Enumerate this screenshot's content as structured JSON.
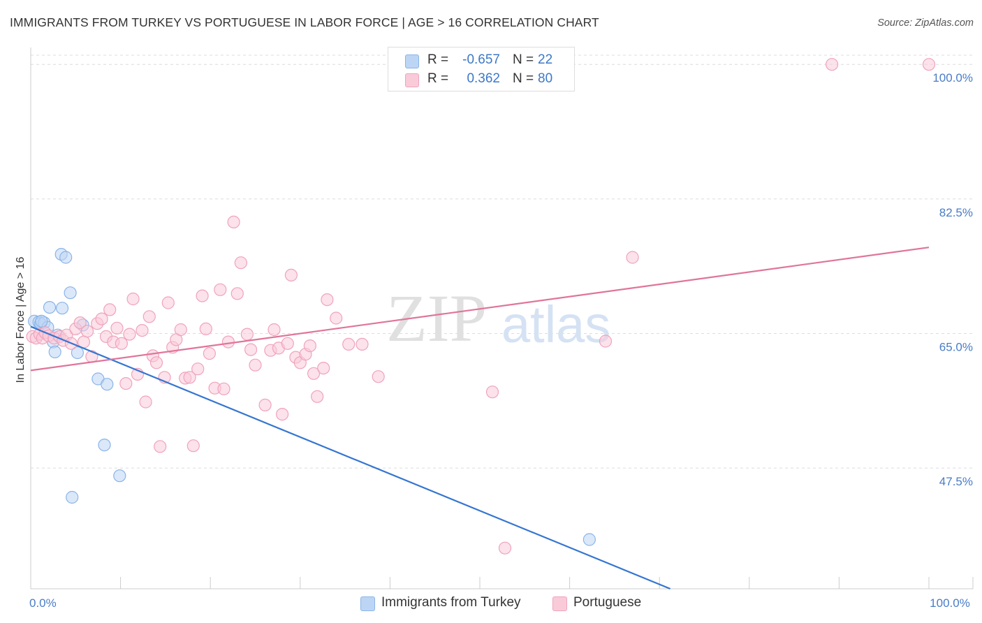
{
  "title": "IMMIGRANTS FROM TURKEY VS PORTUGUESE IN LABOR FORCE | AGE > 16 CORRELATION CHART",
  "source": "Source: ZipAtlas.com",
  "watermark": {
    "part1": "ZIP",
    "part2": "atlas"
  },
  "stats": [
    {
      "r_label": "R =",
      "r_value": "-0.657",
      "n_label": "N =",
      "n_value": "22",
      "color": "#8ab4e8",
      "fill": "#bdd5f4"
    },
    {
      "r_label": "R =",
      "r_value": "0.362",
      "n_label": "N =",
      "n_value": "80",
      "color": "#f0a3bc",
      "fill": "#f9cbd9"
    }
  ],
  "legend": [
    {
      "label": "Immigrants from Turkey",
      "fill": "#bdd5f4",
      "stroke": "#8ab4e8"
    },
    {
      "label": "Portuguese",
      "fill": "#f9cbd9",
      "stroke": "#f0a3bc"
    }
  ],
  "chart_data": {
    "type": "scatter",
    "title": "IMMIGRANTS FROM TURKEY VS PORTUGUESE IN LABOR FORCE | AGE > 16 CORRELATION CHART",
    "xlabel": "",
    "ylabel": "In Labor Force | Age > 16",
    "xlim": [
      0,
      100
    ],
    "ylim": [
      31.8,
      102.2
    ],
    "x_tick_labels": [
      {
        "value": 0,
        "label": "0.0%"
      },
      {
        "value": 100,
        "label": "100.0%"
      }
    ],
    "x_minor_ticks": [
      10,
      20,
      30,
      40,
      50,
      60,
      70,
      80,
      90,
      100
    ],
    "y_ticks": [
      {
        "value": 100,
        "label": "100.0%"
      },
      {
        "value": 82.5,
        "label": "82.5%"
      },
      {
        "value": 65,
        "label": "65.0%"
      },
      {
        "value": 47.5,
        "label": "47.5%"
      }
    ],
    "grid": true,
    "legend_position": "bottom-center",
    "series": [
      {
        "name": "Immigrants from Turkey",
        "color": "#8ab4e8",
        "fill": "#bdd5f4",
        "line_color": "#3575d1",
        "trend": {
          "x": [
            0,
            71.2
          ],
          "y": [
            65.9,
            31.8
          ]
        },
        "points": [
          [
            0.4,
            66.6
          ],
          [
            0.9,
            66.5
          ],
          [
            1.1,
            66.3
          ],
          [
            1.5,
            66.4
          ],
          [
            1.9,
            65.8
          ],
          [
            2.1,
            68.4
          ],
          [
            2.5,
            63.9
          ],
          [
            2.7,
            62.6
          ],
          [
            3.0,
            64.8
          ],
          [
            3.4,
            75.3
          ],
          [
            3.5,
            68.3
          ],
          [
            3.9,
            74.9
          ],
          [
            4.4,
            70.3
          ],
          [
            4.6,
            43.7
          ],
          [
            5.2,
            62.5
          ],
          [
            5.8,
            66.1
          ],
          [
            7.5,
            59.1
          ],
          [
            8.2,
            50.5
          ],
          [
            8.5,
            58.4
          ],
          [
            9.9,
            46.5
          ],
          [
            62.2,
            38.2
          ],
          [
            1.2,
            66.6
          ]
        ]
      },
      {
        "name": "Portuguese",
        "color": "#f0a3bc",
        "fill": "#f9cbd9",
        "line_color": "#e0749a",
        "trend": {
          "x": [
            0,
            100
          ],
          "y": [
            60.2,
            76.2
          ]
        },
        "points": [
          [
            0.2,
            64.6
          ],
          [
            0.6,
            64.4
          ],
          [
            1.0,
            64.9
          ],
          [
            1.3,
            64.4
          ],
          [
            1.6,
            65.1
          ],
          [
            2.0,
            64.7
          ],
          [
            2.6,
            64.4
          ],
          [
            3.2,
            64.6
          ],
          [
            3.6,
            64.1
          ],
          [
            4.0,
            64.8
          ],
          [
            4.5,
            63.7
          ],
          [
            5.0,
            65.6
          ],
          [
            5.5,
            66.4
          ],
          [
            5.9,
            63.9
          ],
          [
            6.3,
            65.3
          ],
          [
            6.8,
            62.0
          ],
          [
            7.4,
            66.3
          ],
          [
            7.9,
            66.9
          ],
          [
            8.4,
            64.6
          ],
          [
            8.8,
            68.1
          ],
          [
            9.2,
            63.9
          ],
          [
            9.6,
            65.7
          ],
          [
            10.1,
            63.7
          ],
          [
            10.6,
            58.5
          ],
          [
            11.0,
            64.9
          ],
          [
            11.4,
            69.5
          ],
          [
            11.9,
            59.7
          ],
          [
            12.4,
            65.4
          ],
          [
            12.8,
            56.1
          ],
          [
            13.2,
            67.2
          ],
          [
            13.6,
            62.1
          ],
          [
            14.0,
            61.2
          ],
          [
            14.4,
            50.3
          ],
          [
            14.9,
            59.3
          ],
          [
            15.3,
            69.0
          ],
          [
            15.8,
            63.2
          ],
          [
            16.2,
            64.2
          ],
          [
            16.7,
            65.5
          ],
          [
            17.2,
            59.2
          ],
          [
            17.7,
            59.3
          ],
          [
            18.1,
            50.4
          ],
          [
            18.6,
            60.4
          ],
          [
            19.1,
            69.9
          ],
          [
            19.5,
            65.6
          ],
          [
            19.9,
            62.4
          ],
          [
            20.5,
            57.9
          ],
          [
            21.1,
            70.7
          ],
          [
            21.5,
            57.8
          ],
          [
            22.0,
            63.9
          ],
          [
            22.6,
            79.5
          ],
          [
            23.0,
            70.2
          ],
          [
            23.4,
            74.2
          ],
          [
            24.1,
            64.9
          ],
          [
            24.5,
            62.9
          ],
          [
            25.0,
            60.9
          ],
          [
            26.1,
            55.7
          ],
          [
            26.7,
            62.8
          ],
          [
            27.1,
            65.5
          ],
          [
            27.6,
            63.1
          ],
          [
            28.0,
            54.5
          ],
          [
            28.6,
            63.7
          ],
          [
            29.0,
            72.6
          ],
          [
            29.5,
            61.9
          ],
          [
            30.0,
            61.2
          ],
          [
            30.6,
            62.3
          ],
          [
            31.1,
            63.4
          ],
          [
            31.5,
            59.8
          ],
          [
            31.9,
            56.8
          ],
          [
            32.6,
            60.5
          ],
          [
            33.0,
            69.4
          ],
          [
            34.0,
            67.0
          ],
          [
            35.4,
            63.6
          ],
          [
            36.9,
            63.6
          ],
          [
            38.7,
            59.4
          ],
          [
            51.4,
            57.4
          ],
          [
            64.0,
            64.0
          ],
          [
            67.0,
            74.9
          ],
          [
            89.2,
            100.0
          ],
          [
            100.0,
            100.0
          ],
          [
            52.8,
            37.1
          ]
        ]
      }
    ]
  }
}
